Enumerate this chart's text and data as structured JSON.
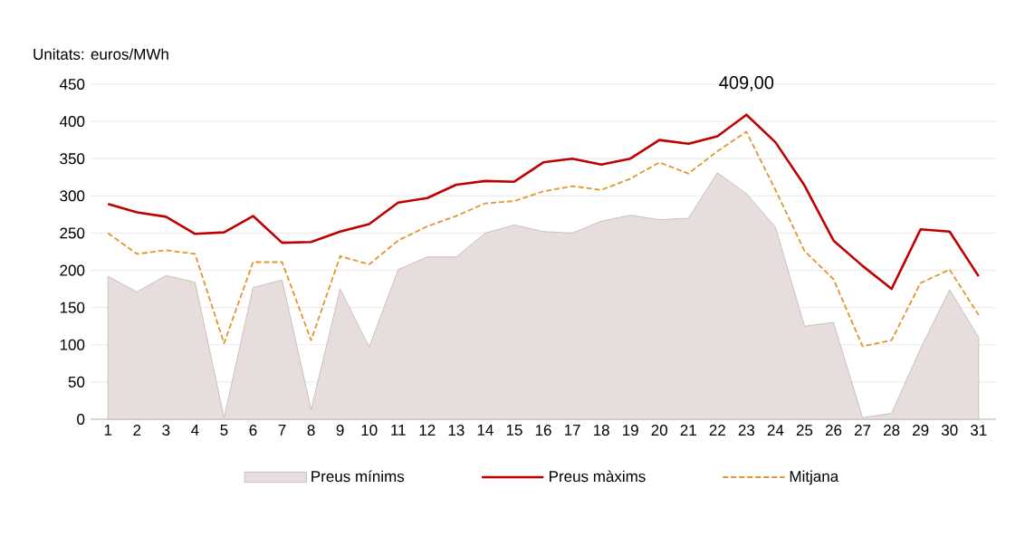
{
  "chart_data": {
    "type": "line",
    "ylabel": "Unitats: euros/MWh",
    "categories": [
      "1",
      "2",
      "3",
      "4",
      "5",
      "6",
      "7",
      "8",
      "9",
      "10",
      "11",
      "12",
      "13",
      "14",
      "15",
      "16",
      "17",
      "18",
      "19",
      "20",
      "21",
      "22",
      "23",
      "24",
      "25",
      "26",
      "27",
      "28",
      "29",
      "30",
      "31"
    ],
    "series": [
      {
        "name": "Preus mínims",
        "type": "area",
        "color": "#e8dddd",
        "values": [
          192,
          171,
          193,
          184,
          2,
          177,
          187,
          13,
          175,
          97,
          201,
          218,
          218,
          250,
          261,
          252,
          250,
          266,
          274,
          268,
          270,
          331,
          303,
          258,
          125,
          130,
          2,
          8,
          95,
          174,
          110
        ]
      },
      {
        "name": "Preus màxims",
        "color": "#c00000",
        "line_style": "solid",
        "values": [
          289,
          278,
          272,
          249,
          251,
          273,
          237,
          238,
          252,
          262,
          291,
          297,
          315,
          320,
          319,
          345,
          350,
          342,
          350,
          375,
          370,
          380,
          409,
          372,
          314,
          240,
          206,
          175,
          255,
          252,
          192
        ]
      },
      {
        "name": "Mitjana",
        "color": "#e0962f",
        "line_style": "dashed",
        "values": [
          250,
          222,
          227,
          222,
          102,
          211,
          211,
          106,
          219,
          208,
          240,
          259,
          273,
          290,
          293,
          306,
          313,
          308,
          323,
          345,
          330,
          360,
          386,
          308,
          226,
          188,
          98,
          106,
          183,
          201,
          140
        ]
      }
    ],
    "ylim": [
      0,
      450
    ],
    "yticks": [
      0,
      50,
      100,
      150,
      200,
      250,
      300,
      350,
      400,
      450
    ],
    "grid": "y",
    "legend": "bottom",
    "marker": "none",
    "annotations": [
      {
        "text": "409,00",
        "x": "23",
        "y": 409
      }
    ]
  }
}
